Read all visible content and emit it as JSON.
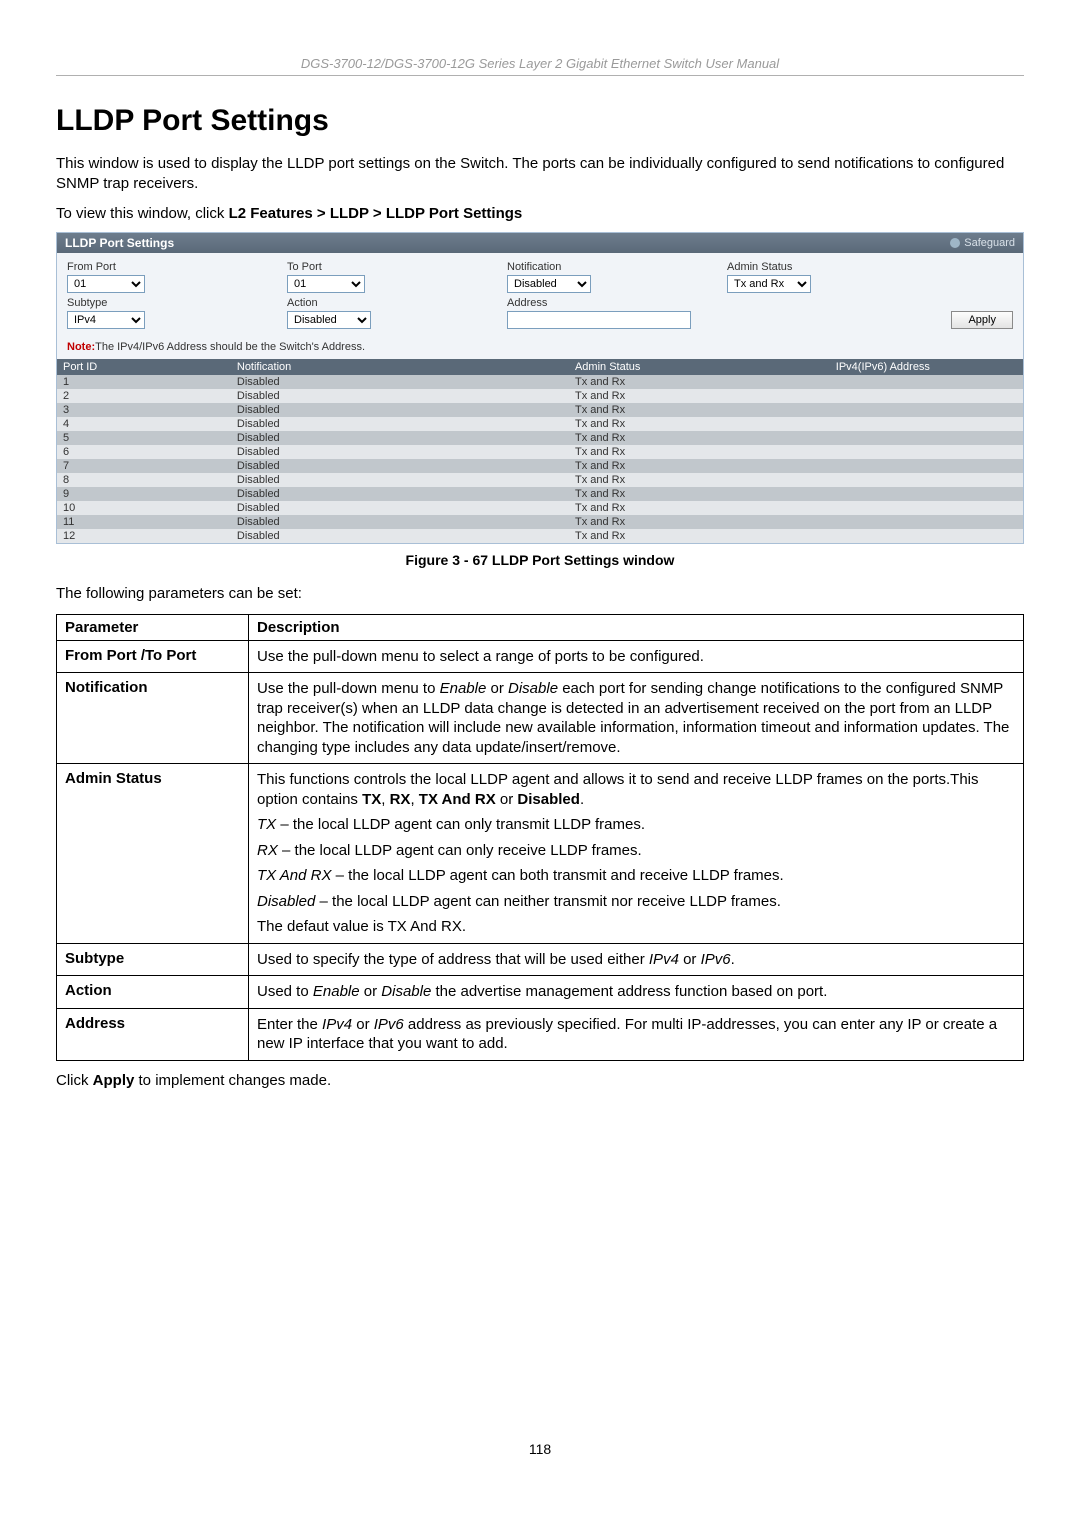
{
  "doc": {
    "header": "DGS-3700-12/DGS-3700-12G Series Layer 2 Gigabit Ethernet Switch User Manual",
    "heading": "LLDP Port Settings",
    "intro": "This window is used to display the LLDP port settings on the Switch. The ports can be individually configured to send notifications to configured SNMP trap receivers.",
    "breadcrumb_prefix": "To view this window, click ",
    "breadcrumb_bold": "L2 Features > LLDP > LLDP Port Settings",
    "figure_caption": "Figure 3 - 67 LLDP Port Settings window",
    "params_intro": "The following parameters can be set:",
    "after_table": "Click Apply to implement changes made.",
    "page_number": "118"
  },
  "ui": {
    "title": "LLDP Port Settings",
    "safeguard": "Safeguard",
    "labels": {
      "from_port": "From Port",
      "to_port": "To Port",
      "notification": "Notification",
      "admin_status": "Admin Status",
      "subtype": "Subtype",
      "action": "Action",
      "address": "Address"
    },
    "values": {
      "from_port": "01",
      "to_port": "01",
      "notification": "Disabled",
      "admin_status": "Tx and Rx",
      "subtype": "IPv4",
      "action": "Disabled",
      "address": ""
    },
    "apply": "Apply",
    "note_label": "Note:",
    "note_text": "The IPv4/IPv6 Address should be the Switch's Address.",
    "table": {
      "headers": [
        "Port ID",
        "Notification",
        "Admin Status",
        "IPv4(IPv6) Address"
      ],
      "rows": [
        [
          "1",
          "Disabled",
          "Tx and Rx",
          ""
        ],
        [
          "2",
          "Disabled",
          "Tx and Rx",
          ""
        ],
        [
          "3",
          "Disabled",
          "Tx and Rx",
          ""
        ],
        [
          "4",
          "Disabled",
          "Tx and Rx",
          ""
        ],
        [
          "5",
          "Disabled",
          "Tx and Rx",
          ""
        ],
        [
          "6",
          "Disabled",
          "Tx and Rx",
          ""
        ],
        [
          "7",
          "Disabled",
          "Tx and Rx",
          ""
        ],
        [
          "8",
          "Disabled",
          "Tx and Rx",
          ""
        ],
        [
          "9",
          "Disabled",
          "Tx and Rx",
          ""
        ],
        [
          "10",
          "Disabled",
          "Tx and Rx",
          ""
        ],
        [
          "11",
          "Disabled",
          "Tx and Rx",
          ""
        ],
        [
          "12",
          "Disabled",
          "Tx and Rx",
          ""
        ]
      ]
    },
    "colors": {
      "panel_border": "#a9bfd6",
      "titlebar_bg": "#5a6978",
      "row_odd": "#c1c7cc",
      "row_even": "#e4e7ea"
    }
  },
  "param_table": {
    "header": [
      "Parameter",
      "Description"
    ],
    "rows": [
      {
        "param": "From Port /To Port",
        "desc": [
          {
            "t": "Use the pull-down menu to select a range of ports to be configured."
          }
        ]
      },
      {
        "param": "Notification",
        "desc": [
          {
            "raw": "Use the pull-down menu to <span class=\"ital\">Enable</span> or <span class=\"ital\">Disable</span> each port for sending change notifications to the configured SNMP trap receiver(s) when an LLDP data change is detected in an advertisement received on the port from an LLDP neighbor. The notification will include new available information, information timeout and information updates. The changing type includes any data update/insert/remove."
          }
        ]
      },
      {
        "param": "Admin Status",
        "desc": [
          {
            "raw": "This functions controls the local LLDP agent and allows it to send and receive LLDP frames on the ports.This option contains <b>TX</b>, <b>RX</b>, <b>TX And RX</b> or <b>Disabled</b>."
          },
          {
            "raw": "<span class=\"ital\">TX</span> – the local LLDP agent can only transmit LLDP frames."
          },
          {
            "raw": "<span class=\"ital\">RX</span> – the local LLDP agent can only receive LLDP frames."
          },
          {
            "raw": "<span class=\"ital\">TX And RX</span> – the local LLDP agent can both transmit and receive LLDP frames."
          },
          {
            "raw": "<span class=\"ital\">Disabled</span> – the local LLDP agent can neither transmit nor receive LLDP frames."
          },
          {
            "t": "The defaut value is TX And RX."
          }
        ]
      },
      {
        "param": "Subtype",
        "desc": [
          {
            "raw": "Used to specify the type of address that will be used either <span class=\"ital\">IPv4</span> or <span class=\"ital\">IPv6</span>."
          }
        ]
      },
      {
        "param": "Action",
        "desc": [
          {
            "raw": "Used to <span class=\"ital\">Enable</span> or <span class=\"ital\">Disable</span> the advertise management address function based on port."
          }
        ]
      },
      {
        "param": "Address",
        "desc": [
          {
            "raw": "Enter the <span class=\"ital\">IPv4</span> or <span class=\"ital\">IPv6</span> address as previously specified. For multi IP-addresses, you can enter any IP or create a new IP interface that you want to add."
          }
        ]
      }
    ]
  }
}
